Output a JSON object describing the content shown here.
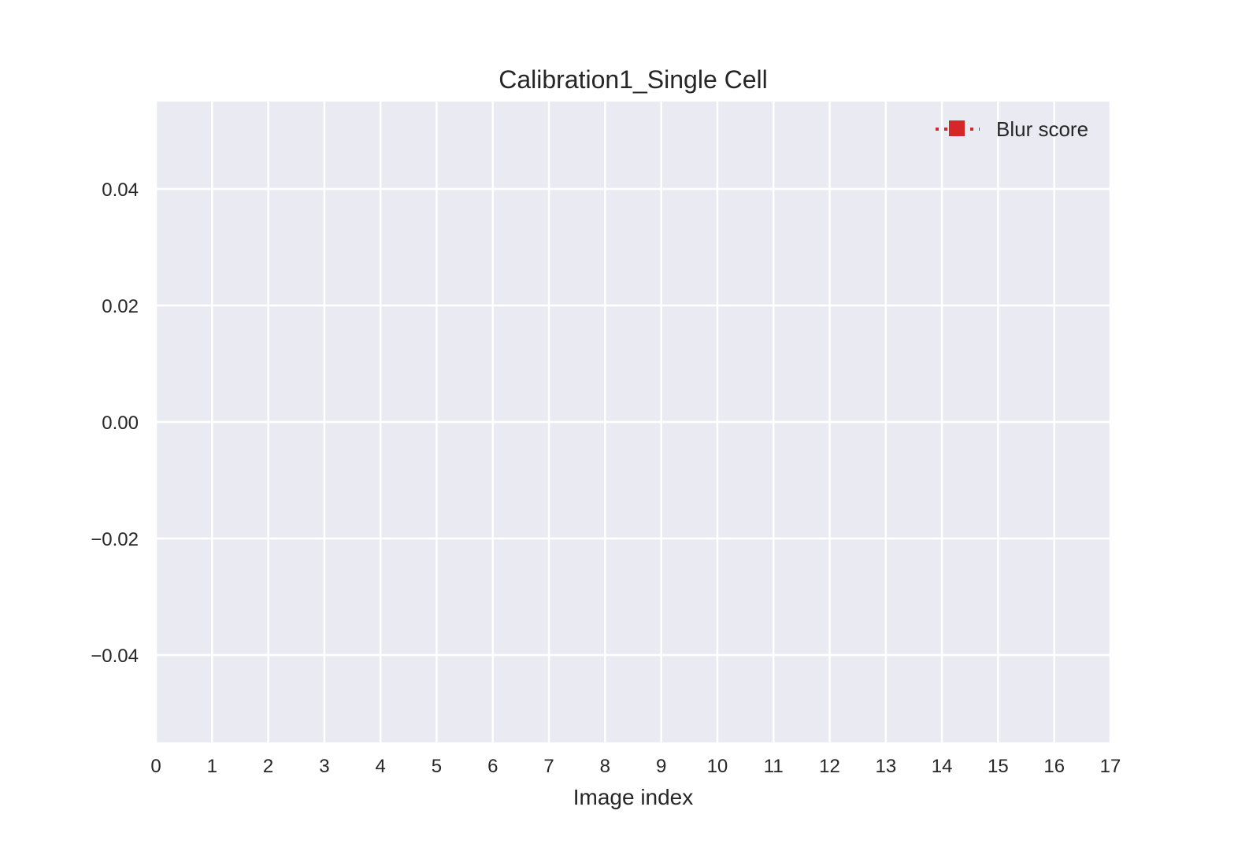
{
  "chart_data": {
    "type": "line",
    "title": "Calibration1_Single Cell",
    "xlabel": "Image index",
    "ylabel": "",
    "xlim": [
      0,
      17
    ],
    "ylim": [
      -0.055,
      0.055
    ],
    "x_ticks": [
      0,
      1,
      2,
      3,
      4,
      5,
      6,
      7,
      8,
      9,
      10,
      11,
      12,
      13,
      14,
      15,
      16,
      17
    ],
    "x_tick_labels": [
      "0",
      "1",
      "2",
      "3",
      "4",
      "5",
      "6",
      "7",
      "8",
      "9",
      "10",
      "11",
      "12",
      "13",
      "14",
      "15",
      "16",
      "17"
    ],
    "y_ticks": [
      0.04,
      0.02,
      0.0,
      -0.02,
      -0.04
    ],
    "y_tick_labels": [
      "0.04",
      "0.02",
      "0.00",
      "−0.02",
      "−0.04"
    ],
    "grid": true,
    "legend_position": "top-right",
    "series": [
      {
        "name": "Blur score",
        "color": "#d62728",
        "marker": "square",
        "linestyle": "dotted",
        "x": [],
        "y": []
      }
    ],
    "colors": {
      "plot_background": "#eaeaf2",
      "grid": "#ffffff",
      "series": "#d62728"
    }
  }
}
